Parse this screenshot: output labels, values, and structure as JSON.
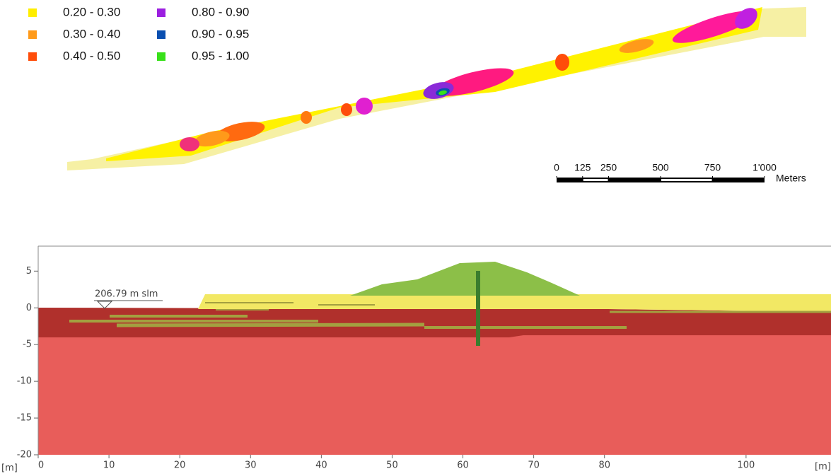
{
  "legend": {
    "items": [
      {
        "label": "0.20 - 0.30",
        "color": "#ffee00"
      },
      {
        "label": "0.30 - 0.40",
        "color": "#ff9a1a"
      },
      {
        "label": "0.40 - 0.50",
        "color": "#ff4d0a"
      },
      {
        "label": "0.80 - 0.90",
        "color": "#9b1fe0"
      },
      {
        "label": "0.90 - 0.95",
        "color": "#0a4fb0"
      },
      {
        "label": "0.95 - 1.00",
        "color": "#38e01a"
      }
    ]
  },
  "scale_bar": {
    "ticks": [
      0,
      125,
      250,
      500,
      750,
      {
        "value": 1000,
        "label": "1'000"
      }
    ],
    "unit": "Meters"
  },
  "section": {
    "xlim": [
      0,
      112
    ],
    "ylim": [
      -20,
      8.4
    ],
    "xticks": [
      0,
      10,
      20,
      30,
      40,
      50,
      60,
      70,
      80,
      100
    ],
    "yticks": [
      5,
      0,
      -5,
      -10,
      -15,
      -20
    ],
    "x_unit": "[m]",
    "y_unit": "[m]",
    "water_label": "206.79 m slm"
  }
}
